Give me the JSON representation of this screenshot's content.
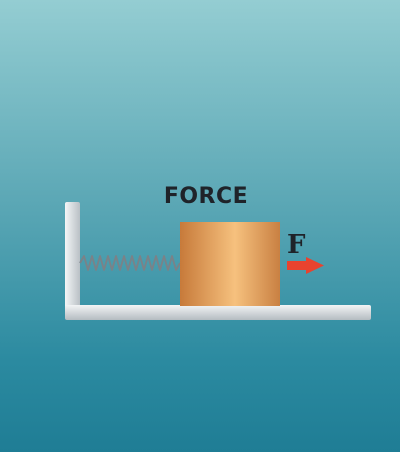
{
  "title": "FORCE",
  "force_label": "F",
  "colors": {
    "block_light": "#f6c17e",
    "block_dark": "#c77a3a",
    "arrow": "#e8432f",
    "floor": "#e6e8ea",
    "wall": "#dfe3e6",
    "spring": "#7a8288"
  }
}
